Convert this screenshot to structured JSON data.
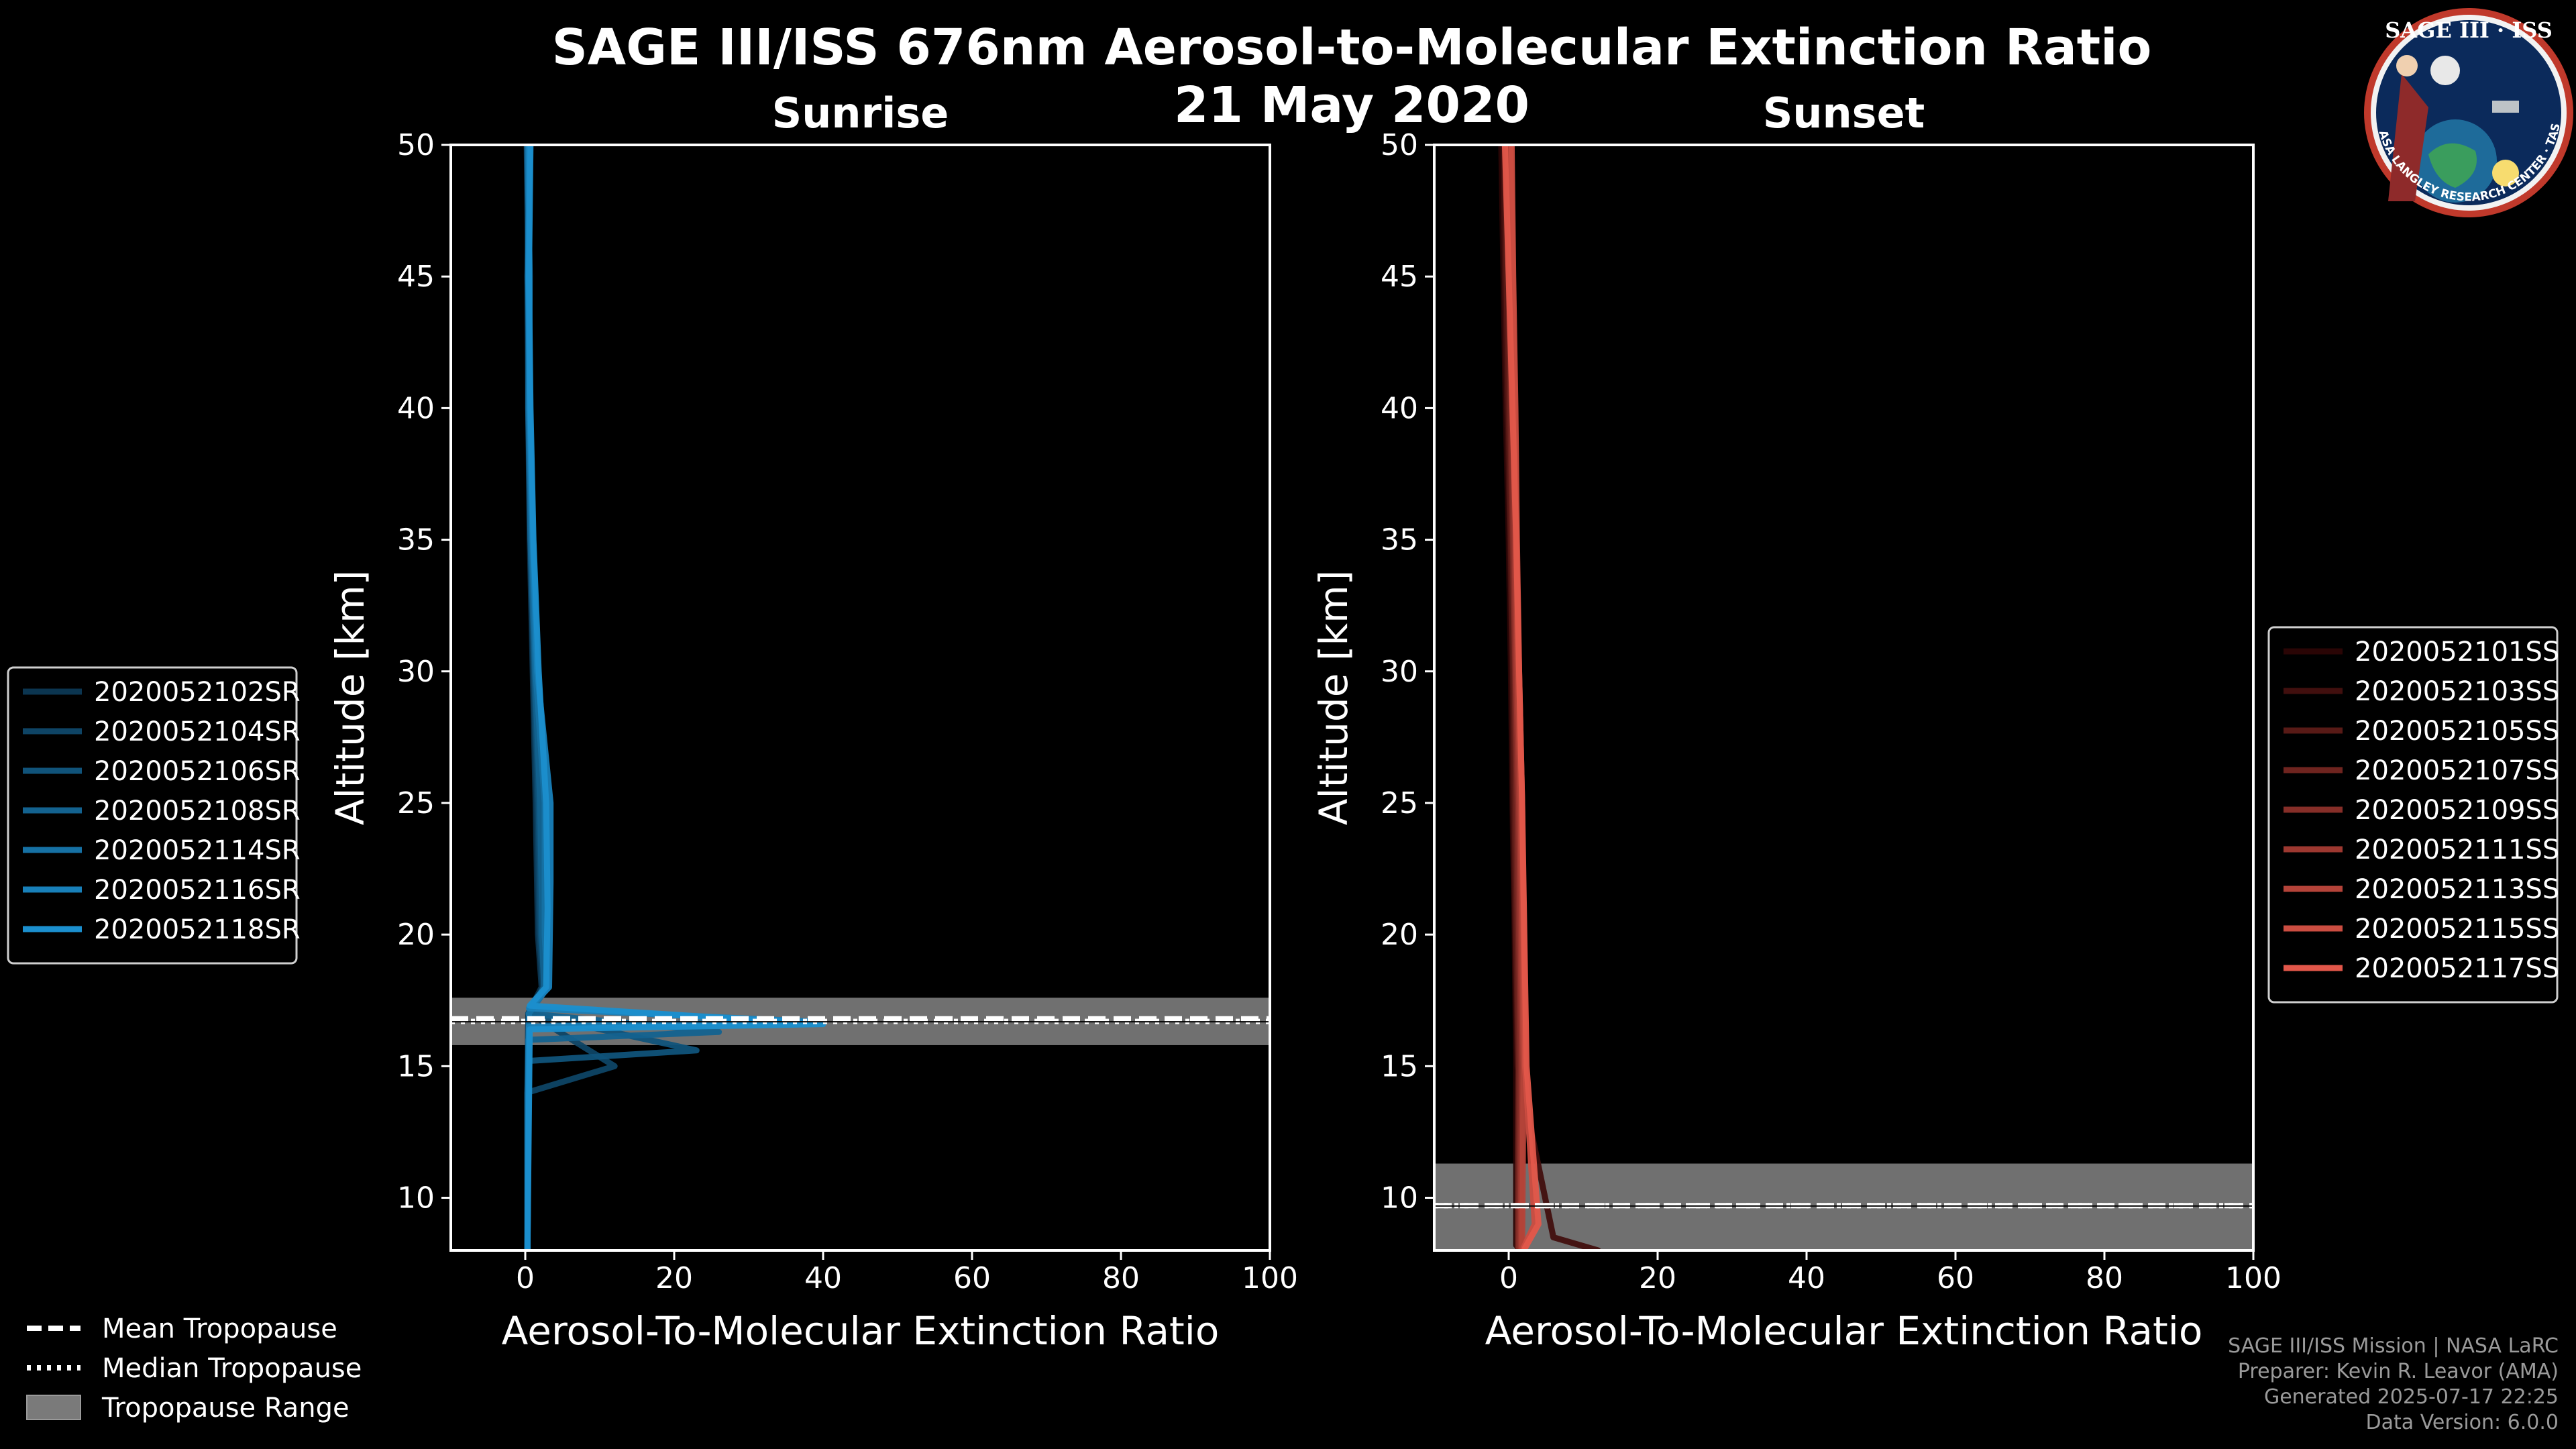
{
  "title": "SAGE III/ISS 676nm Aerosol-to-Molecular Extinction Ratio",
  "date": "21 May 2020",
  "logo": {
    "text": "SAGE III · ISS",
    "ring_text": "BALL · NASA LANGLEY RESEARCH CENTER · TAS-I · ESA"
  },
  "colors": {
    "sunrise": "#1b8fce",
    "sunset": "#e2574a",
    "band": "#7a7a7a",
    "frame": "#ffffff"
  },
  "footer": {
    "line1": "SAGE III/ISS Mission | NASA LaRC",
    "line2": "Preparer: Kevin R. Leavor (AMA)",
    "line3": "Generated 2025-07-17 22:25",
    "line4": "Data Version: 6.0.0"
  },
  "tropo_legend": [
    "Mean Tropopause",
    "Median Tropopause",
    "Tropopause Range"
  ],
  "chart_data": [
    {
      "type": "line",
      "title": "Sunrise",
      "xlabel": "Aerosol-To-Molecular Extinction Ratio",
      "ylabel": "Altitude [km]",
      "xlim": [
        -10,
        100
      ],
      "ylim": [
        8,
        50
      ],
      "xticks": [
        0,
        20,
        40,
        60,
        80,
        100
      ],
      "yticks": [
        10,
        15,
        20,
        25,
        30,
        35,
        40,
        45,
        50
      ],
      "tropopause": {
        "mean": 16.8,
        "median": 16.7,
        "range": [
          15.8,
          17.6
        ]
      },
      "series": [
        {
          "name": "2020052102SR",
          "x": [
            0.5,
            0.3,
            0.4,
            0.6,
            1.0,
            1.4,
            1.7,
            2.2,
            0.4,
            0.3,
            0.3
          ],
          "y": [
            50,
            45,
            40,
            35,
            30,
            25,
            20,
            18,
            17,
            14,
            8
          ]
        },
        {
          "name": "2020052104SR",
          "x": [
            0.2,
            0.4,
            0.5,
            0.7,
            1.1,
            1.6,
            1.9,
            2.4,
            0.6,
            12,
            0.3,
            0.3
          ],
          "y": [
            50,
            45,
            40,
            35,
            30,
            25,
            20,
            18,
            17,
            15,
            14,
            8
          ]
        },
        {
          "name": "2020052106SR",
          "x": [
            0.6,
            0.3,
            0.5,
            0.8,
            1.2,
            1.8,
            2.1,
            2.6,
            0.4,
            23,
            0.5,
            0.3
          ],
          "y": [
            50,
            45,
            40,
            35,
            30,
            25,
            20,
            18,
            17,
            15.6,
            15.2,
            8
          ]
        },
        {
          "name": "2020052108SR",
          "x": [
            0.4,
            0.5,
            0.4,
            0.7,
            1.3,
            2.0,
            2.3,
            2.5,
            0.5,
            26,
            0.4,
            0.3
          ],
          "y": [
            50,
            45,
            40,
            35,
            30,
            25,
            20,
            18,
            17,
            16.3,
            16,
            8
          ]
        },
        {
          "name": "2020052114SR",
          "x": [
            0.3,
            0.6,
            0.5,
            0.9,
            1.4,
            2.6,
            2.6,
            3.0,
            0.5,
            0.3,
            0.3
          ],
          "y": [
            50,
            45,
            40,
            35,
            30,
            25,
            20,
            18,
            17,
            14,
            8
          ]
        },
        {
          "name": "2020052116SR",
          "x": [
            0.5,
            0.4,
            0.6,
            1.0,
            1.6,
            3.4,
            3.4,
            3.2,
            0.5,
            38,
            0.5,
            0.3
          ],
          "y": [
            50,
            45,
            40,
            35,
            30,
            25,
            22,
            18,
            17.2,
            16.7,
            16.5,
            8
          ]
        },
        {
          "name": "2020052118SR",
          "x": [
            0.7,
            0.5,
            0.7,
            1.1,
            1.8,
            2.8,
            3.0,
            2.8,
            0.6,
            40,
            0.6,
            0.3
          ],
          "y": [
            50,
            45,
            40,
            35,
            30,
            25,
            21,
            18,
            17.3,
            16.6,
            16.4,
            8
          ]
        }
      ]
    },
    {
      "type": "line",
      "title": "Sunset",
      "xlabel": "Aerosol-To-Molecular Extinction Ratio",
      "ylabel": "Altitude [km]",
      "xlim": [
        -10,
        100
      ],
      "ylim": [
        8,
        50
      ],
      "xticks": [
        0,
        20,
        40,
        60,
        80,
        100
      ],
      "yticks": [
        10,
        15,
        20,
        25,
        30,
        35,
        40,
        45,
        50
      ],
      "tropopause": {
        "mean": 9.7,
        "median": 9.7,
        "range": [
          8.0,
          11.3
        ]
      },
      "series": [
        {
          "name": "2020052101SS",
          "x": [
            -1.0,
            -0.7,
            -0.4,
            0.0,
            0.3,
            0.5,
            0.8,
            1.0,
            1.0
          ],
          "y": [
            50,
            45,
            40,
            35,
            30,
            25,
            20,
            15,
            8.2
          ]
        },
        {
          "name": "2020052103SS",
          "x": [
            -0.7,
            -0.5,
            -0.2,
            0.2,
            0.5,
            0.6,
            0.9,
            1.2,
            6,
            12
          ],
          "y": [
            50,
            45,
            40,
            35,
            30,
            25,
            20,
            15,
            8.5,
            8.0
          ]
        },
        {
          "name": "2020052105SS",
          "x": [
            -0.5,
            -0.3,
            0.0,
            0.3,
            0.6,
            0.8,
            1.0,
            1.3,
            1.2
          ],
          "y": [
            50,
            45,
            40,
            35,
            30,
            25,
            20,
            15,
            8.1
          ]
        },
        {
          "name": "2020052107SS",
          "x": [
            -0.3,
            0.0,
            0.2,
            0.5,
            0.8,
            1.0,
            1.2,
            1.4,
            1.3
          ],
          "y": [
            50,
            45,
            40,
            35,
            30,
            25,
            20,
            15,
            8.1
          ]
        },
        {
          "name": "2020052109SS",
          "x": [
            -0.2,
            0.1,
            0.4,
            0.6,
            0.9,
            1.2,
            1.4,
            1.6,
            1.4
          ],
          "y": [
            50,
            45,
            40,
            35,
            30,
            25,
            20,
            15,
            8.1
          ]
        },
        {
          "name": "2020052111SS",
          "x": [
            0.0,
            0.3,
            0.6,
            0.8,
            1.0,
            1.4,
            1.6,
            1.8,
            1.6
          ],
          "y": [
            50,
            45,
            40,
            35,
            30,
            25,
            20,
            15,
            8.1
          ]
        },
        {
          "name": "2020052113SS",
          "x": [
            0.2,
            0.5,
            0.7,
            1.0,
            1.2,
            1.6,
            1.8,
            2.0,
            1.8
          ],
          "y": [
            50,
            45,
            40,
            35,
            30,
            25,
            20,
            15,
            8.1
          ]
        },
        {
          "name": "2020052115SS",
          "x": [
            0.4,
            0.6,
            0.9,
            1.1,
            1.4,
            1.8,
            2.0,
            2.2,
            3.5,
            2.0
          ],
          "y": [
            50,
            45,
            40,
            35,
            30,
            25,
            20,
            15,
            9,
            8.1
          ]
        },
        {
          "name": "2020052117SS",
          "x": [
            -0.5,
            0.0,
            0.5,
            1.0,
            1.4,
            1.8,
            2.1,
            2.4,
            4.0,
            2.2
          ],
          "y": [
            50,
            45,
            40,
            35,
            30,
            25,
            20,
            15,
            9,
            8.1
          ]
        }
      ]
    }
  ]
}
